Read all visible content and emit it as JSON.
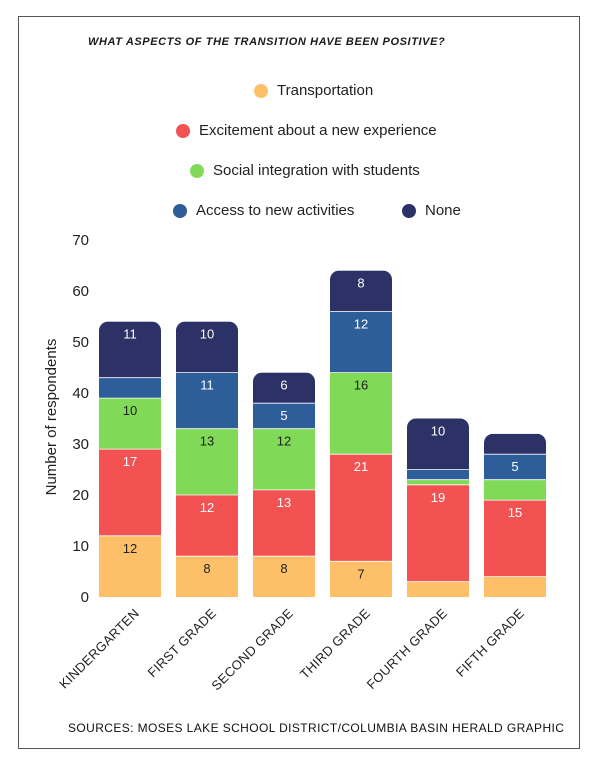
{
  "chart_data": {
    "type": "bar",
    "stacked": true,
    "title": "WHAT ASPECTS OF THE TRANSITION HAVE BEEN POSITIVE?",
    "ylabel": "Number of respondents",
    "ylim": [
      0,
      70
    ],
    "yticks": [
      0,
      10,
      20,
      30,
      40,
      50,
      60,
      70
    ],
    "categories": [
      "KINDERGARTEN",
      "FIRST GRADE",
      "SECOND GRADE",
      "THIRD GRADE",
      "FOURTH GRADE",
      "FIFTH GRADE"
    ],
    "series": [
      {
        "name": "Transportation",
        "color": "#FDC068",
        "label_color": "#222222",
        "values": [
          12,
          8,
          8,
          7,
          3,
          4
        ],
        "labels": [
          "12",
          "8",
          "8",
          "7",
          "",
          ""
        ]
      },
      {
        "name": "Excitement about a new experience",
        "color": "#F25252",
        "label_color": "#ffffff",
        "values": [
          17,
          12,
          13,
          21,
          19,
          15
        ],
        "labels": [
          "17",
          "12",
          "13",
          "21",
          "19",
          "15"
        ]
      },
      {
        "name": "Social integration with students",
        "color": "#80DA58",
        "label_color": "#222222",
        "values": [
          10,
          13,
          12,
          16,
          1,
          4
        ],
        "labels": [
          "10",
          "13",
          "12",
          "16",
          "",
          ""
        ]
      },
      {
        "name": "Access to new activities",
        "color": "#2E5E9A",
        "label_color": "#ffffff",
        "values": [
          4,
          11,
          5,
          12,
          2,
          5
        ],
        "labels": [
          "",
          "11",
          "5",
          "12",
          "",
          "5"
        ]
      },
      {
        "name": "None",
        "color": "#2C3266",
        "label_color": "#ffffff",
        "values": [
          11,
          10,
          6,
          8,
          10,
          4
        ],
        "labels": [
          "11",
          "10",
          "6",
          "8",
          "10",
          ""
        ]
      }
    ],
    "legend_position": "top"
  },
  "source": "SOURCES: MOSES LAKE SCHOOL DISTRICT/COLUMBIA BASIN HERALD GRAPHIC"
}
